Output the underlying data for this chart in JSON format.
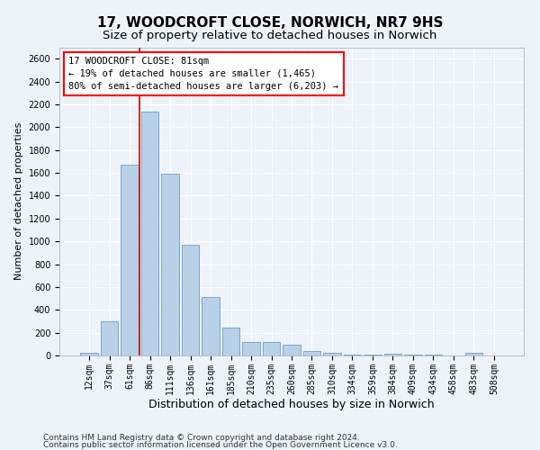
{
  "title1": "17, WOODCROFT CLOSE, NORWICH, NR7 9HS",
  "title2": "Size of property relative to detached houses in Norwich",
  "xlabel": "Distribution of detached houses by size in Norwich",
  "ylabel": "Number of detached properties",
  "categories": [
    "12sqm",
    "37sqm",
    "61sqm",
    "86sqm",
    "111sqm",
    "136sqm",
    "161sqm",
    "185sqm",
    "210sqm",
    "235sqm",
    "260sqm",
    "285sqm",
    "310sqm",
    "334sqm",
    "359sqm",
    "384sqm",
    "409sqm",
    "434sqm",
    "458sqm",
    "483sqm",
    "508sqm"
  ],
  "values": [
    20,
    300,
    1670,
    2140,
    1595,
    970,
    510,
    245,
    120,
    115,
    95,
    40,
    20,
    10,
    8,
    15,
    5,
    5,
    0,
    20,
    0
  ],
  "bar_color": "#b8d0e8",
  "bar_edge_color": "#6a9ec5",
  "ylim": [
    0,
    2700
  ],
  "yticks": [
    0,
    200,
    400,
    600,
    800,
    1000,
    1200,
    1400,
    1600,
    1800,
    2000,
    2200,
    2400,
    2600
  ],
  "annotation_line1": "17 WOODCROFT CLOSE: 81sqm",
  "annotation_line2": "← 19% of detached houses are smaller (1,465)",
  "annotation_line3": "80% of semi-detached houses are larger (6,203) →",
  "vline_x_index": 3,
  "vline_color": "#cc0000",
  "footer1": "Contains HM Land Registry data © Crown copyright and database right 2024.",
  "footer2": "Contains public sector information licensed under the Open Government Licence v3.0.",
  "background_color": "#eef2f9",
  "grid_color": "#ffffff",
  "title1_fontsize": 11,
  "title2_fontsize": 9.5,
  "ylabel_fontsize": 8,
  "xlabel_fontsize": 9,
  "tick_fontsize": 7,
  "annot_fontsize": 7.5,
  "footer_fontsize": 6.5
}
